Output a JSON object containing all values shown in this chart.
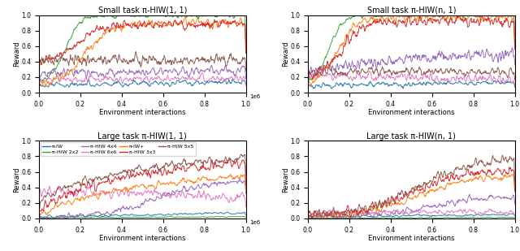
{
  "titles": [
    "Small task π-HIW(1, 1)",
    "Small task π-HIW(n, 1)",
    "Large task π-HIW(1, 1)",
    "Large task π-HIW(n, 1)"
  ],
  "xlabel": "Environment interactions",
  "ylabel": "Reward",
  "legend_labels": [
    "π-IW",
    "π-HIW 2x2",
    "π-HIW 4x4",
    "π-HIW 6x6",
    "π-IW+",
    "π-HIW 3x3",
    "π-HIW 5x5"
  ],
  "legend_colors": [
    "#1f77b4",
    "#2ca02c",
    "#9467bd",
    "#e377c2",
    "#ff7f0e",
    "#d62728",
    "#8c564b"
  ],
  "n_points": 500,
  "xlim": [
    0,
    1000000
  ],
  "ylim": [
    0.0,
    1.0
  ]
}
